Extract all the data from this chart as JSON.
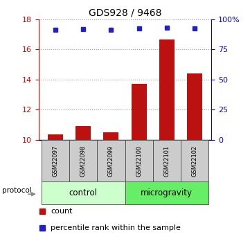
{
  "title": "GDS928 / 9468",
  "samples": [
    "GSM22097",
    "GSM22098",
    "GSM22099",
    "GSM22100",
    "GSM22101",
    "GSM22102"
  ],
  "bar_values": [
    10.35,
    10.9,
    10.5,
    13.7,
    16.65,
    14.4
  ],
  "percentile_values": [
    17.3,
    17.35,
    17.3,
    17.4,
    17.45,
    17.4
  ],
  "ylim_left": [
    10,
    18
  ],
  "yticks_left": [
    10,
    12,
    14,
    16,
    18
  ],
  "yticks_right": [
    0,
    25,
    50,
    75,
    100
  ],
  "ytick_labels_right": [
    "0",
    "25",
    "50",
    "75",
    "100%"
  ],
  "bar_color": "#BB1111",
  "dot_color": "#2222BB",
  "grid_color": "#999999",
  "left_axis_color": "#CC0000",
  "right_axis_color": "#0000CC",
  "control_label": "control",
  "microgravity_label": "microgravity",
  "protocol_label": "protocol",
  "group_color_control": "#CCFFCC",
  "group_color_microgravity": "#66EE66",
  "sample_box_color": "#CCCCCC",
  "legend_count_label": "count",
  "legend_percentile_label": "percentile rank within the sample",
  "bg_color": "#FFFFFF"
}
